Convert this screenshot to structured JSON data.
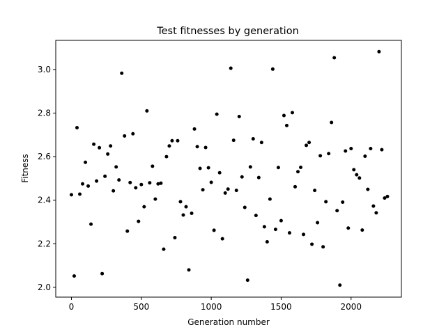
{
  "chart_data": {
    "type": "scatter",
    "title": "Test fitnesses by generation",
    "xlabel": "Generation number",
    "ylabel": "Fitness",
    "xlim": [
      -112,
      2360
    ],
    "ylim": [
      1.955,
      3.134
    ],
    "xticks": [
      0,
      500,
      1000,
      1500,
      2000
    ],
    "xtick_labels": [
      "0",
      "500",
      "1000",
      "1500",
      "2000"
    ],
    "yticks": [
      2.0,
      2.2,
      2.4,
      2.6,
      2.8,
      3.0
    ],
    "ytick_labels": [
      "2.0",
      "2.2",
      "2.4",
      "2.6",
      "2.8",
      "3.0"
    ],
    "grid": false,
    "marker_color": "#000000",
    "series": [
      {
        "x": [
          0,
          20,
          40,
          60,
          80,
          100,
          120,
          140,
          160,
          180,
          200,
          220,
          240,
          260,
          280,
          300,
          320,
          340,
          360,
          380,
          400,
          420,
          440,
          460,
          480,
          500,
          520,
          540,
          560,
          580,
          600,
          620,
          640,
          660,
          680,
          700,
          720,
          740,
          760,
          780,
          800,
          820,
          840,
          860,
          880,
          900,
          920,
          940,
          960,
          980,
          1000,
          1020,
          1040,
          1060,
          1080,
          1100,
          1120,
          1140,
          1160,
          1180,
          1200,
          1220,
          1240,
          1260,
          1280,
          1300,
          1320,
          1340,
          1360,
          1380,
          1400,
          1420,
          1440,
          1460,
          1480,
          1500,
          1520,
          1540,
          1560,
          1580,
          1600,
          1620,
          1640,
          1660,
          1680,
          1700,
          1720,
          1740,
          1760,
          1780,
          1800,
          1820,
          1840,
          1860,
          1880,
          1900,
          1920,
          1940,
          1960,
          1980,
          2000,
          2020,
          2040,
          2060,
          2080,
          2100,
          2120,
          2140,
          2160,
          2180,
          2200,
          2220,
          2240,
          2260
        ],
        "y": [
          2.425,
          2.052,
          2.733,
          2.428,
          2.475,
          2.574,
          2.465,
          2.29,
          2.657,
          2.488,
          2.641,
          2.063,
          2.51,
          2.612,
          2.649,
          2.443,
          2.553,
          2.493,
          2.983,
          2.695,
          2.258,
          2.481,
          2.705,
          2.457,
          2.303,
          2.472,
          2.37,
          2.81,
          2.48,
          2.556,
          2.405,
          2.475,
          2.478,
          2.175,
          2.6,
          2.649,
          2.673,
          2.228,
          2.673,
          2.393,
          2.332,
          2.37,
          2.08,
          2.34,
          2.727,
          2.646,
          2.546,
          2.448,
          2.642,
          2.549,
          2.482,
          2.262,
          2.795,
          2.526,
          2.223,
          2.433,
          2.451,
          3.006,
          2.675,
          2.445,
          2.784,
          2.507,
          2.367,
          2.033,
          2.553,
          2.682,
          2.33,
          2.504,
          2.665,
          2.278,
          2.209,
          2.405,
          3.002,
          2.266,
          2.55,
          2.306,
          2.789,
          2.743,
          2.25,
          2.802,
          2.462,
          2.531,
          2.551,
          2.243,
          2.652,
          2.665,
          2.198,
          2.445,
          2.297,
          2.604,
          2.186,
          2.393,
          2.614,
          2.757,
          3.054,
          2.352,
          2.01,
          2.391,
          2.626,
          2.272,
          2.637,
          2.54,
          2.517,
          2.502,
          2.263,
          2.602,
          2.45,
          2.637,
          2.373,
          2.342,
          3.082,
          2.632,
          2.41,
          2.417
        ]
      }
    ]
  }
}
